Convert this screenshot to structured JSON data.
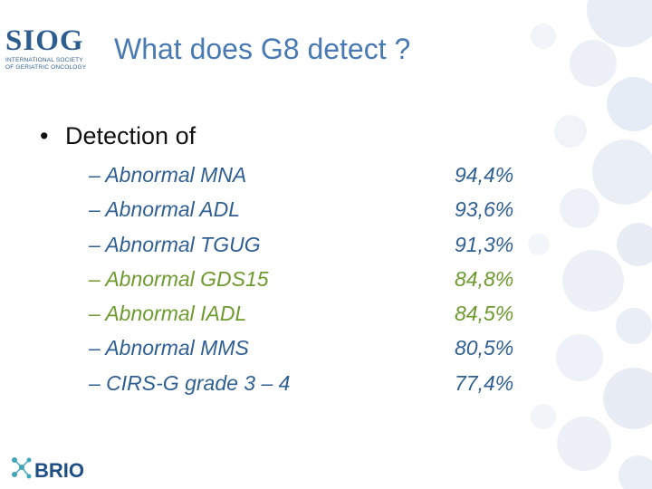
{
  "logo": {
    "name": "SIOG",
    "line1": "INTERNATIONAL SOCIETY",
    "line2": "OF GERIATRIC ONCOLOGY"
  },
  "title": "What does G8 detect ?",
  "bullet": {
    "symbol": "•",
    "text": "Detection of"
  },
  "items": [
    {
      "label": "– Abnormal MNA",
      "value": "94,4%",
      "color": "#2f5f93"
    },
    {
      "label": "– Abnormal ADL",
      "value": "93,6%",
      "color": "#2f5f93"
    },
    {
      "label": "– Abnormal TGUG",
      "value": "91,3%",
      "color": "#2f5f93"
    },
    {
      "label": "– Abnormal GDS15",
      "value": "84,8%",
      "color": "#6e9a2f"
    },
    {
      "label": "– Abnormal IADL",
      "value": "84,5%",
      "color": "#6e9a2f"
    },
    {
      "label": "– Abnormal MMS",
      "value": "80,5%",
      "color": "#2f5f93"
    },
    {
      "label": "– CIRS-G grade 3 – 4",
      "value": "77,4%",
      "color": "#2f5f93"
    }
  ],
  "footer_logo": {
    "name": "BRIO"
  }
}
